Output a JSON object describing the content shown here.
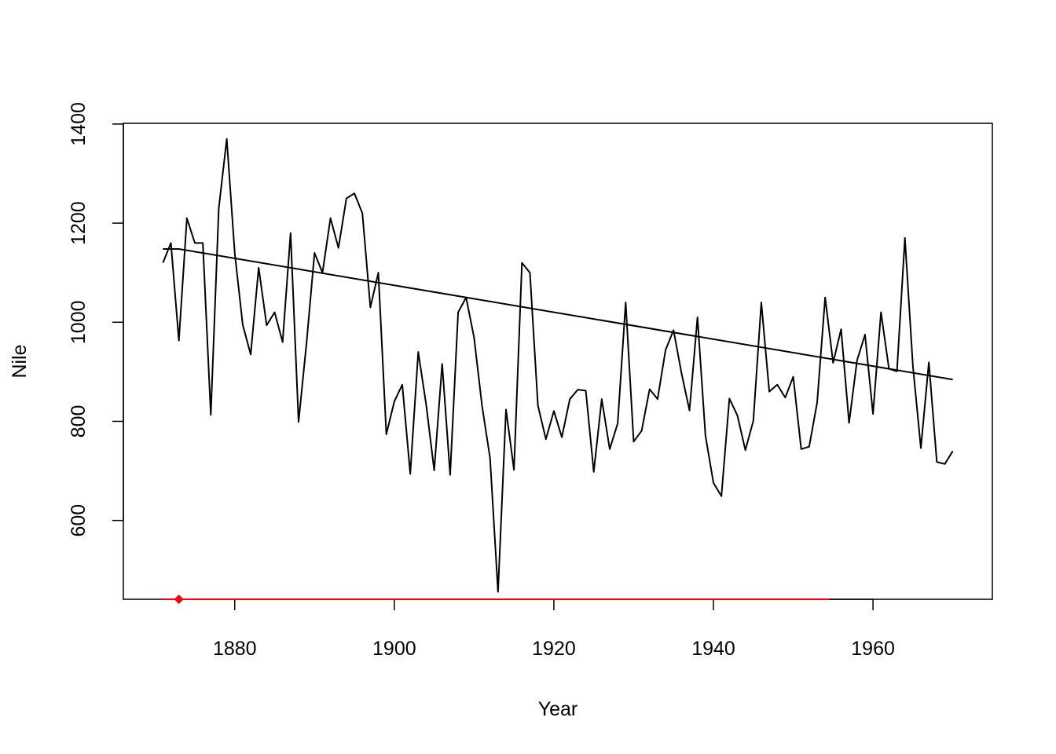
{
  "chart_data": {
    "type": "line",
    "xlabel": "Year",
    "ylabel": "Nile",
    "xlim": [
      1866.04,
      1974.96
    ],
    "ylim": [
      440.96,
      1401.44
    ],
    "x_ticks": [
      "1880",
      "1900",
      "1920",
      "1940",
      "1960"
    ],
    "y_ticks": [
      "600",
      "800",
      "1000",
      "1200",
      "1400"
    ],
    "x": [
      1871,
      1872,
      1873,
      1874,
      1875,
      1876,
      1877,
      1878,
      1879,
      1880,
      1881,
      1882,
      1883,
      1884,
      1885,
      1886,
      1887,
      1888,
      1889,
      1890,
      1891,
      1892,
      1893,
      1894,
      1895,
      1896,
      1897,
      1898,
      1899,
      1900,
      1901,
      1902,
      1903,
      1904,
      1905,
      1906,
      1907,
      1908,
      1909,
      1910,
      1911,
      1912,
      1913,
      1914,
      1915,
      1916,
      1917,
      1918,
      1919,
      1920,
      1921,
      1922,
      1923,
      1924,
      1925,
      1926,
      1927,
      1928,
      1929,
      1930,
      1931,
      1932,
      1933,
      1934,
      1935,
      1936,
      1937,
      1938,
      1939,
      1940,
      1941,
      1942,
      1943,
      1944,
      1945,
      1946,
      1947,
      1948,
      1949,
      1950,
      1951,
      1952,
      1953,
      1954,
      1955,
      1956,
      1957,
      1958,
      1959,
      1960,
      1961,
      1962,
      1963,
      1964,
      1965,
      1966,
      1967,
      1968,
      1969,
      1970
    ],
    "series": [
      {
        "color": "#000000",
        "values": [
          1120,
          1160,
          963,
          1210,
          1160,
          1160,
          813,
          1230,
          1370,
          1140,
          995,
          935,
          1110,
          994,
          1020,
          960,
          1180,
          799,
          958,
          1140,
          1100,
          1210,
          1150,
          1250,
          1260,
          1220,
          1030,
          1100,
          774,
          840,
          874,
          694,
          940,
          833,
          701,
          916,
          692,
          1020,
          1050,
          969,
          831,
          726,
          456,
          824,
          702,
          1120,
          1100,
          832,
          764,
          821,
          768,
          845,
          864,
          862,
          698,
          845,
          744,
          796,
          1040,
          759,
          781,
          865,
          845,
          944,
          984,
          897,
          822,
          1010,
          771,
          676,
          649,
          846,
          812,
          742,
          801,
          1040,
          860,
          874,
          848,
          890,
          744,
          749,
          838,
          1050,
          918,
          986,
          797,
          923,
          975,
          815,
          1020,
          906,
          901,
          1170,
          912,
          746,
          919,
          718,
          714,
          740
        ]
      },
      {
        "color": "#000000",
        "x": [
          1871,
          1873,
          1970
        ],
        "values": [
          1147.9,
          1147.9,
          884.3
        ]
      }
    ],
    "annotations": [
      {
        "type": "segment",
        "color": "#ff0000",
        "x": [
          1871,
          1954.5
        ],
        "y": 440.96
      },
      {
        "type": "point",
        "shape": "diamond",
        "color": "#ff0000",
        "x": 1873,
        "y": 440.96
      }
    ]
  }
}
